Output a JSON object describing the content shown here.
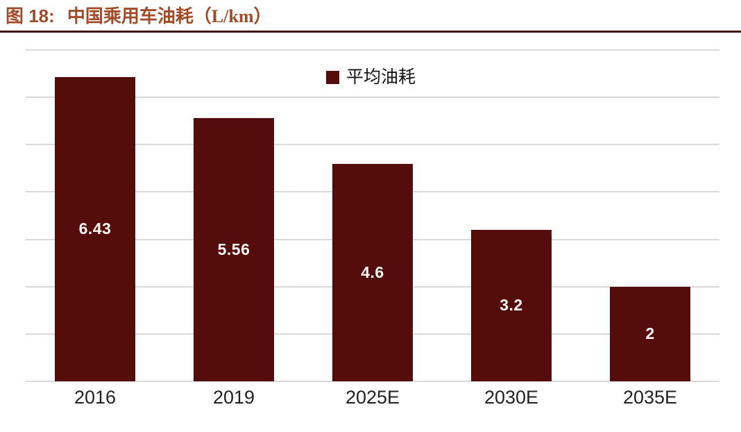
{
  "figure": {
    "number_label": "图 18:",
    "title": "中国乘用车油耗（L/km）"
  },
  "legend": {
    "label": "平均油耗"
  },
  "chart_data": {
    "type": "bar",
    "title": "中国乘用车油耗（L/km）",
    "categories": [
      "2016",
      "2019",
      "2025E",
      "2030E",
      "2035E"
    ],
    "series": [
      {
        "name": "平均油耗",
        "values": [
          6.43,
          5.56,
          4.6,
          3.2,
          2
        ],
        "value_labels": [
          "6.43",
          "5.56",
          "4.6",
          "3.2",
          "2"
        ]
      }
    ],
    "xlabel": "",
    "ylabel": "",
    "ylim": [
      0,
      7
    ],
    "grid_step": 1,
    "grid": true,
    "y_axis_labels_visible": false,
    "legend_position": "top-center-inside",
    "value_label_position": "center-of-bar"
  },
  "colors": {
    "bar": "#540d0a",
    "title_text": "#a14b28",
    "title_rule": "#3b0f15",
    "gridline": "#d9d9d9",
    "value_label": "#fdf6f4",
    "axis_text": "#222222",
    "background": "#ffffff"
  }
}
